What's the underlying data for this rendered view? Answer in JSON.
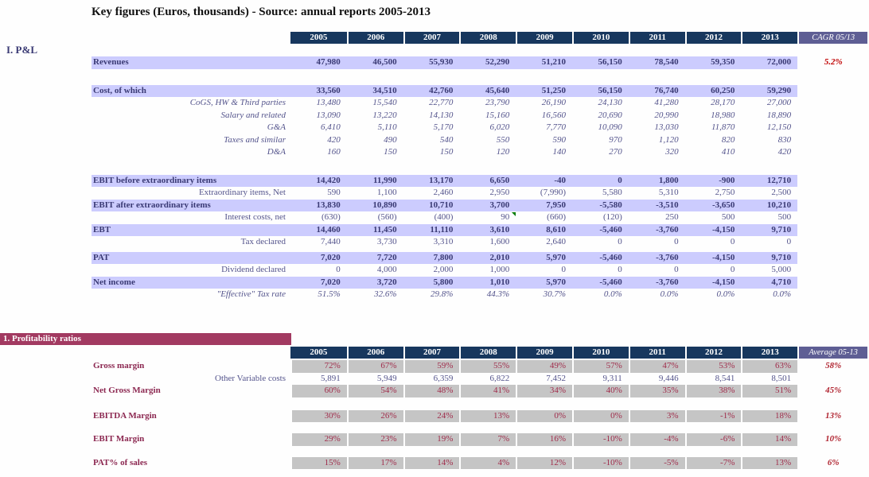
{
  "title": "Key figures (Euros, thousands) - Source: annual reports 2005-2013",
  "colors": {
    "navy": "#17375E",
    "slate": "#5E5E94",
    "band": "#CCCCFE",
    "ink": "#3A3A74",
    "ink2": "#54548C",
    "red": "#C00000",
    "maroon": "#8C2851",
    "maroonv": "#A02C4B",
    "banner": "#A23A61",
    "gray": "#C5C5C5",
    "avgred": "#B02430",
    "green": "#007A00"
  },
  "pnl": {
    "section_label": "I. P&L",
    "years": [
      "2005",
      "2006",
      "2007",
      "2008",
      "2009",
      "2010",
      "2011",
      "2012",
      "2013"
    ],
    "cagr_header": "CAGR 05/13",
    "rows": [
      {
        "type": "row",
        "style": "band",
        "label": "Revenues",
        "values": [
          "47,980",
          "46,500",
          "55,930",
          "52,290",
          "51,210",
          "56,150",
          "78,540",
          "59,350",
          "72,000"
        ],
        "cagr": "5.2%"
      },
      {
        "type": "gap",
        "h": 20
      },
      {
        "type": "row",
        "style": "band",
        "label": "Cost, of which",
        "values": [
          "33,560",
          "34,510",
          "42,760",
          "45,640",
          "51,250",
          "56,150",
          "76,740",
          "60,250",
          "59,290"
        ]
      },
      {
        "type": "row",
        "style": "italic",
        "label": "CoGS, HW & Third parties",
        "values": [
          "13,480",
          "15,540",
          "22,770",
          "23,790",
          "26,190",
          "24,130",
          "41,280",
          "28,170",
          "27,000"
        ]
      },
      {
        "type": "row",
        "style": "italic",
        "label": "Salary and related",
        "values": [
          "13,090",
          "13,220",
          "14,130",
          "15,160",
          "16,560",
          "20,690",
          "20,990",
          "18,980",
          "18,890"
        ]
      },
      {
        "type": "row",
        "style": "italic",
        "label": "G&A",
        "values": [
          "6,410",
          "5,110",
          "5,170",
          "6,020",
          "7,770",
          "10,090",
          "13,030",
          "11,870",
          "12,150"
        ]
      },
      {
        "type": "row",
        "style": "italic",
        "label": "Taxes and similar",
        "values": [
          "420",
          "490",
          "540",
          "550",
          "590",
          "970",
          "1,120",
          "820",
          "830"
        ]
      },
      {
        "type": "row",
        "style": "italic",
        "label": "D&A",
        "values": [
          "160",
          "150",
          "150",
          "120",
          "140",
          "270",
          "320",
          "410",
          "420"
        ]
      },
      {
        "type": "gap",
        "h": 20
      },
      {
        "type": "row",
        "style": "band",
        "label": "EBIT before extraordinary items",
        "values": [
          "14,420",
          "11,990",
          "13,170",
          "6,650",
          "-40",
          "0",
          "1,800",
          "-900",
          "12,710"
        ]
      },
      {
        "type": "row",
        "style": "plain",
        "label": "Extraordinary items, Net",
        "values": [
          "590",
          "1,100",
          "2,460",
          "2,950",
          "(7,990)",
          "5,580",
          "5,310",
          "2,750",
          "2,500"
        ]
      },
      {
        "type": "row",
        "style": "band",
        "label": "EBIT after extraordinary items",
        "values": [
          "13,830",
          "10,890",
          "10,710",
          "3,700",
          "7,950",
          "-5,580",
          "-3,510",
          "-3,650",
          "10,210"
        ]
      },
      {
        "type": "row",
        "style": "plain",
        "label": "Interest costs, net",
        "values": [
          "(630)",
          "(560)",
          "(400)",
          "90",
          "(660)",
          "(120)",
          "250",
          "500",
          "500"
        ],
        "note_col": 3
      },
      {
        "type": "row",
        "style": "band",
        "label": "EBT",
        "values": [
          "14,460",
          "11,450",
          "11,110",
          "3,610",
          "8,610",
          "-5,460",
          "-3,760",
          "-4,150",
          "9,710"
        ]
      },
      {
        "type": "row",
        "style": "plain",
        "label": "Tax declared",
        "values": [
          "7,440",
          "3,730",
          "3,310",
          "1,600",
          "2,640",
          "0",
          "0",
          "0",
          "0"
        ]
      },
      {
        "type": "gap",
        "h": 4
      },
      {
        "type": "row",
        "style": "band",
        "label": "PAT",
        "values": [
          "7,020",
          "7,720",
          "7,800",
          "2,010",
          "5,970",
          "-5,460",
          "-3,760",
          "-4,150",
          "9,710"
        ]
      },
      {
        "type": "row",
        "style": "plain",
        "label": "Dividend declared",
        "values": [
          "0",
          "4,000",
          "2,000",
          "1,000",
          "0",
          "0",
          "0",
          "0",
          "5,000"
        ]
      },
      {
        "type": "row",
        "style": "band",
        "label": "Net income",
        "values": [
          "7,020",
          "3,720",
          "5,800",
          "1,010",
          "5,970",
          "-5,460",
          "-3,760",
          "-4,150",
          "4,710"
        ]
      },
      {
        "type": "row",
        "style": "italic",
        "label": "\"Effective\" Tax rate",
        "values": [
          "51.5%",
          "32.6%",
          "29.8%",
          "44.3%",
          "30.7%",
          "0.0%",
          "0.0%",
          "0.0%",
          "0.0%"
        ]
      }
    ]
  },
  "ratios": {
    "banner": "1. Profitability ratios",
    "years": [
      "2005",
      "2006",
      "2007",
      "2008",
      "2009",
      "2010",
      "2011",
      "2012",
      "2013"
    ],
    "avg_header": "Average 05-13",
    "rows": [
      {
        "type": "row",
        "style": "ratio",
        "label": "Gross margin",
        "values": [
          "72%",
          "67%",
          "59%",
          "55%",
          "49%",
          "57%",
          "47%",
          "53%",
          "63%"
        ],
        "avg": "58%"
      },
      {
        "type": "row",
        "style": "plain",
        "label": "Other Variable costs",
        "values": [
          "5,891",
          "5,949",
          "6,359",
          "6,822",
          "7,452",
          "9,311",
          "9,446",
          "8,541",
          "8,501"
        ]
      },
      {
        "type": "row",
        "style": "ratio",
        "label": "Net Gross Margin",
        "values": [
          "60%",
          "54%",
          "48%",
          "41%",
          "34%",
          "40%",
          "35%",
          "38%",
          "51%"
        ],
        "avg": "45%"
      },
      {
        "type": "gap",
        "h": 16
      },
      {
        "type": "row",
        "style": "ratio",
        "label": "EBITDA Margin",
        "values": [
          "30%",
          "26%",
          "24%",
          "13%",
          "0%",
          "0%",
          "3%",
          "-1%",
          "18%"
        ],
        "avg": "13%"
      },
      {
        "type": "gap",
        "h": 14
      },
      {
        "type": "row",
        "style": "ratio",
        "label": "EBIT Margin",
        "values": [
          "29%",
          "23%",
          "19%",
          "7%",
          "16%",
          "-10%",
          "-4%",
          "-6%",
          "14%"
        ],
        "avg": "10%"
      },
      {
        "type": "gap",
        "h": 14
      },
      {
        "type": "row",
        "style": "ratio",
        "label": "PAT% of sales",
        "values": [
          "15%",
          "17%",
          "14%",
          "4%",
          "12%",
          "-10%",
          "-5%",
          "-7%",
          "13%"
        ],
        "avg": "6%"
      }
    ]
  }
}
